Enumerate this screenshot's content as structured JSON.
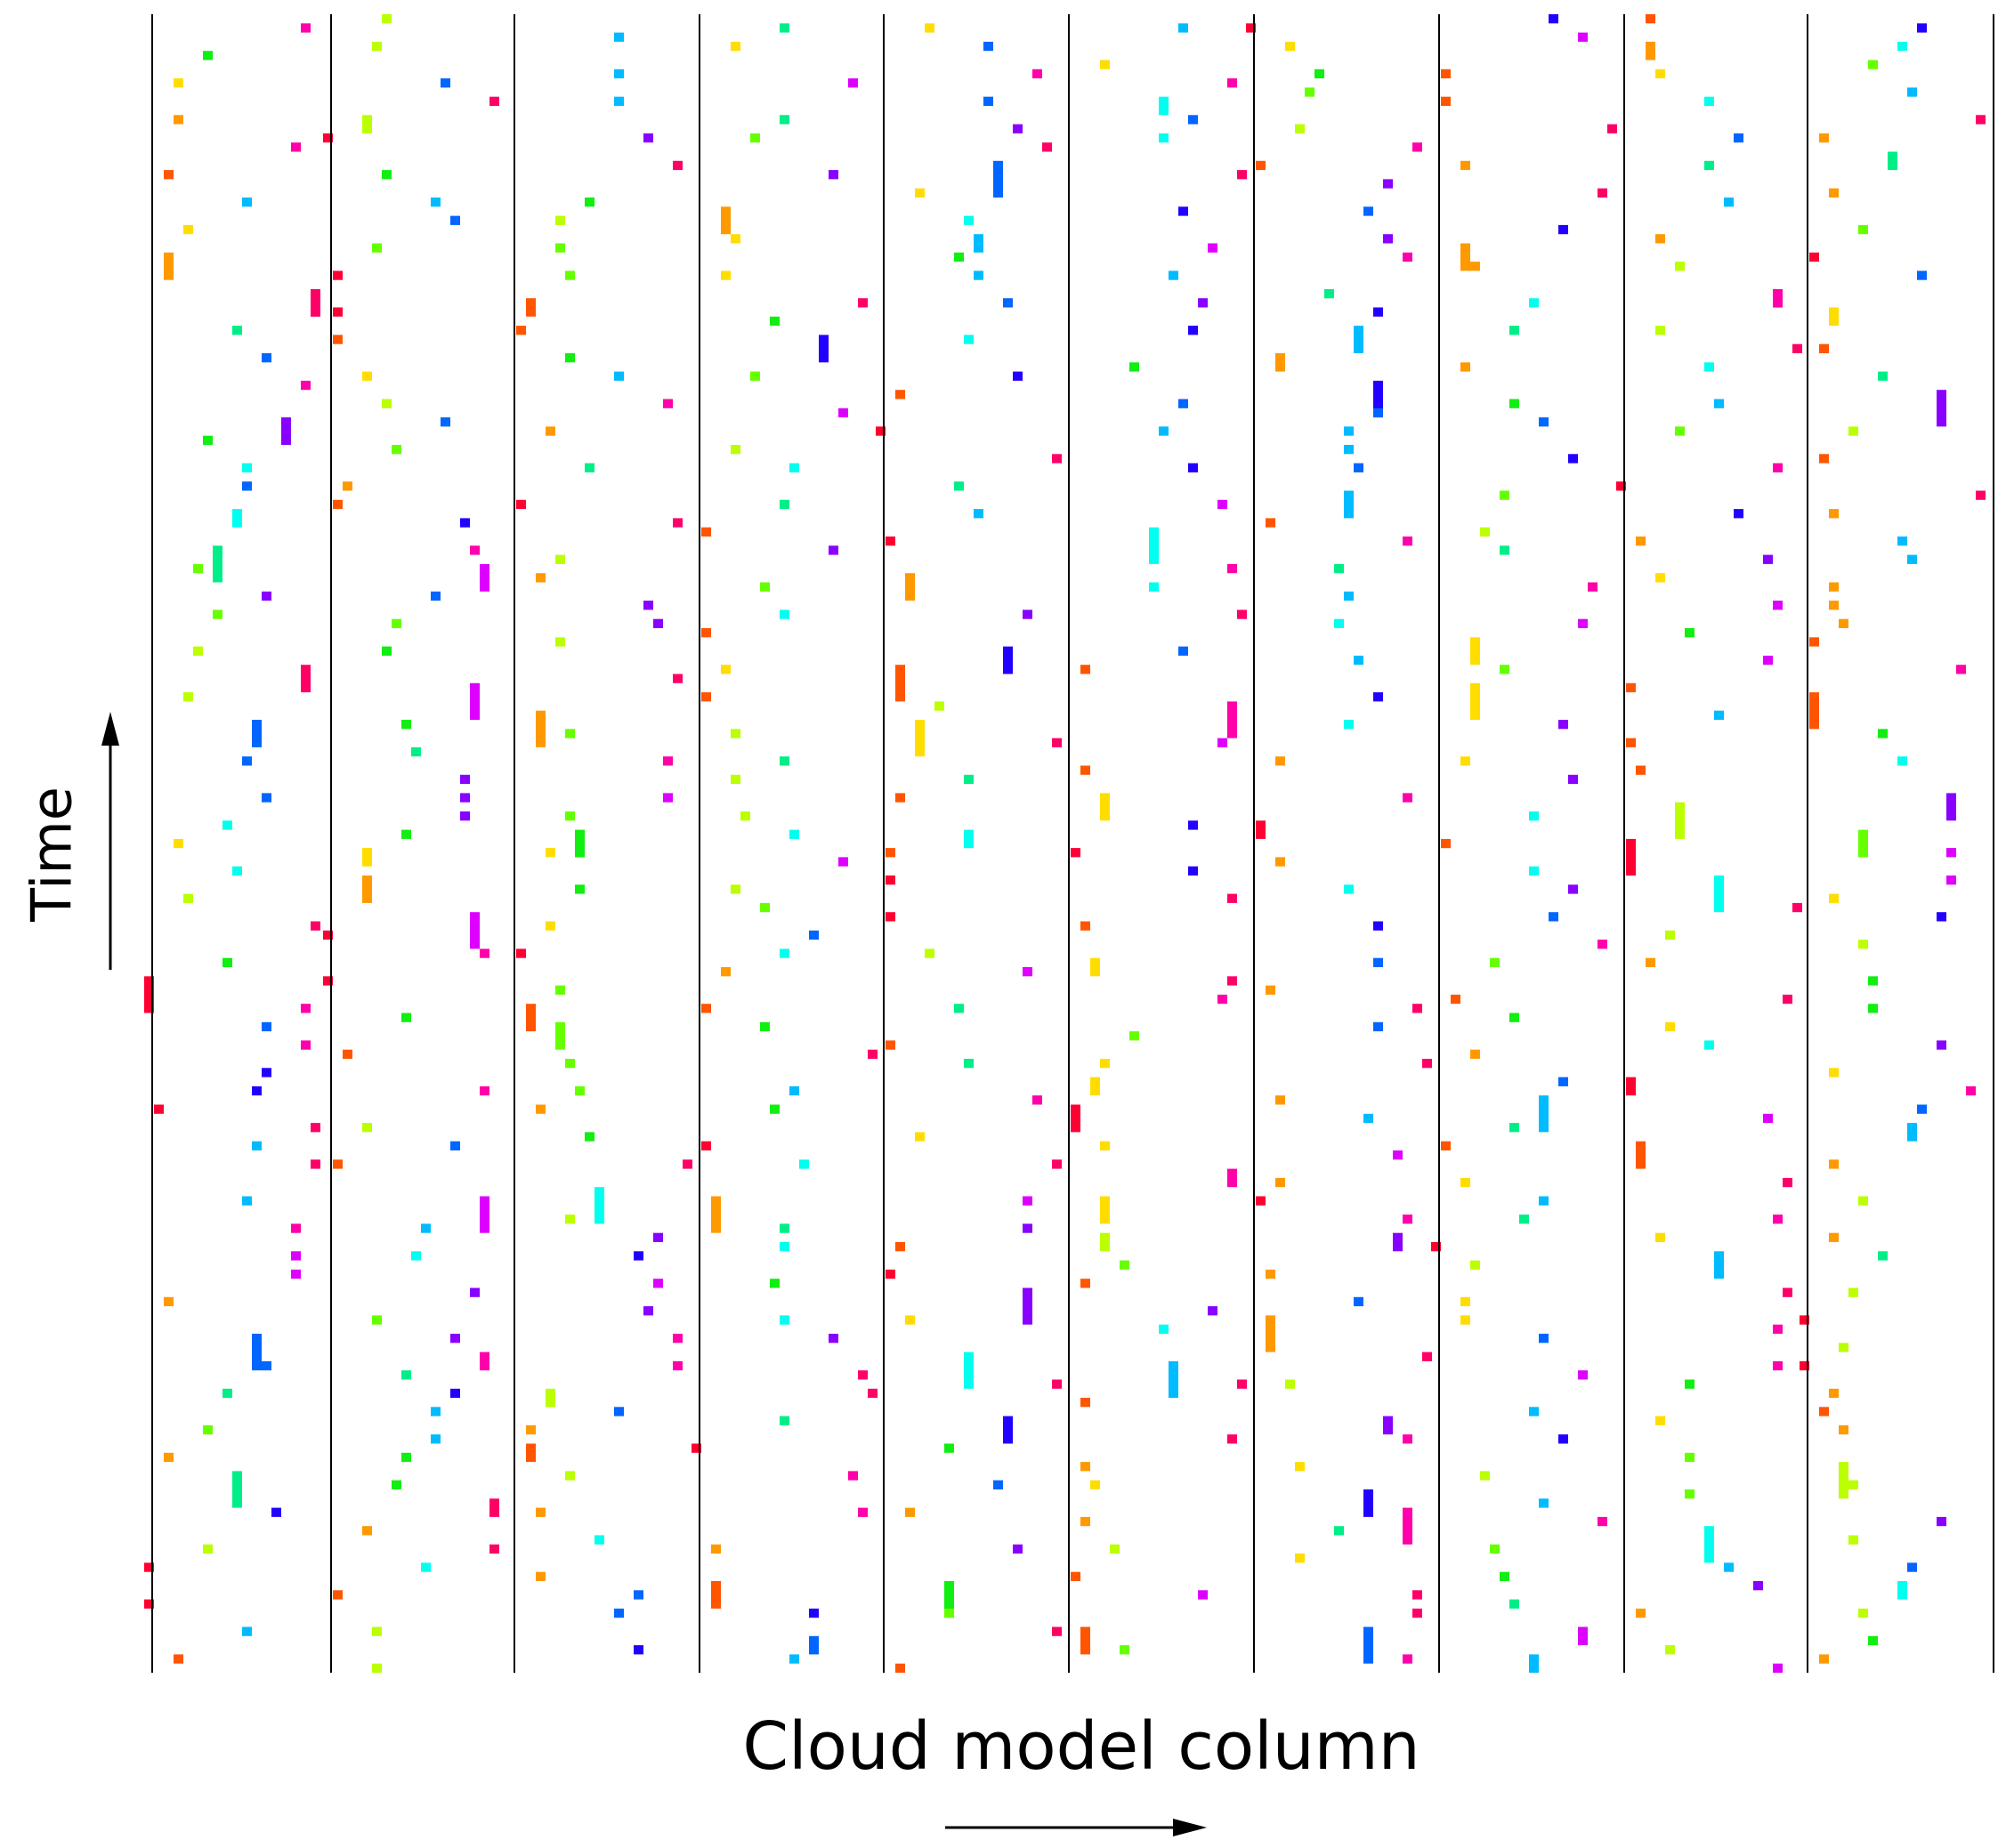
{
  "labels": {
    "x_axis": "Cloud model column",
    "y_axis": "Time"
  },
  "diagram": {
    "columns": 10,
    "time_rows": 181,
    "seed": 20240611,
    "palette": [
      "#ff0033",
      "#ff5500",
      "#ff9900",
      "#ffdd00",
      "#bbff00",
      "#66ff00",
      "#11ee11",
      "#00ee88",
      "#00ffee",
      "#00bbff",
      "#0066ff",
      "#2200ff",
      "#8800ff",
      "#dd00ff",
      "#ff00aa",
      "#ff0066"
    ],
    "line_color": "#000000",
    "arrow_color": "#000000"
  }
}
